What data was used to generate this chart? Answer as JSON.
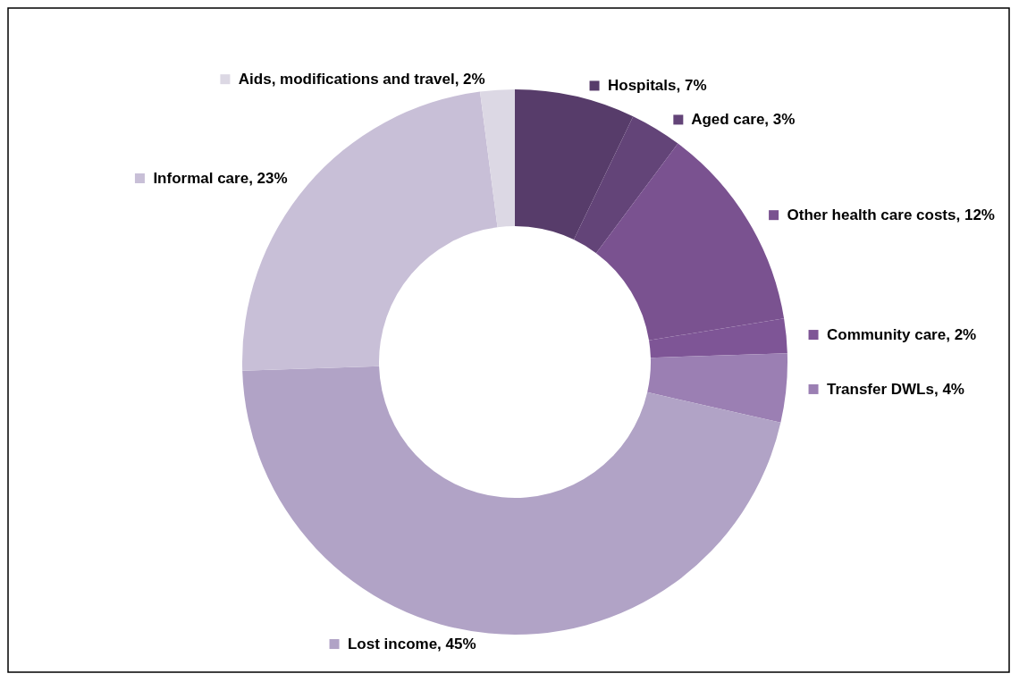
{
  "chart_data": {
    "type": "donut",
    "categories": [
      "Hospitals",
      "Aged care",
      "Other health care costs",
      "Community care",
      "Transfer DWLs",
      "Lost income",
      "Informal care",
      "Aids, modifications and travel"
    ],
    "values": [
      7,
      3,
      12,
      2,
      4,
      45,
      23,
      2
    ],
    "value_labels": [
      "7%",
      "3%",
      "12%",
      "2%",
      "4%",
      "45%",
      "23%",
      "2%"
    ],
    "colors": [
      "#573c6a",
      "#634478",
      "#7a5290",
      "#7e5596",
      "#9b7fb3",
      "#b1a3c6",
      "#c8bfd7",
      "#dcd8e4"
    ],
    "legend": "right"
  }
}
